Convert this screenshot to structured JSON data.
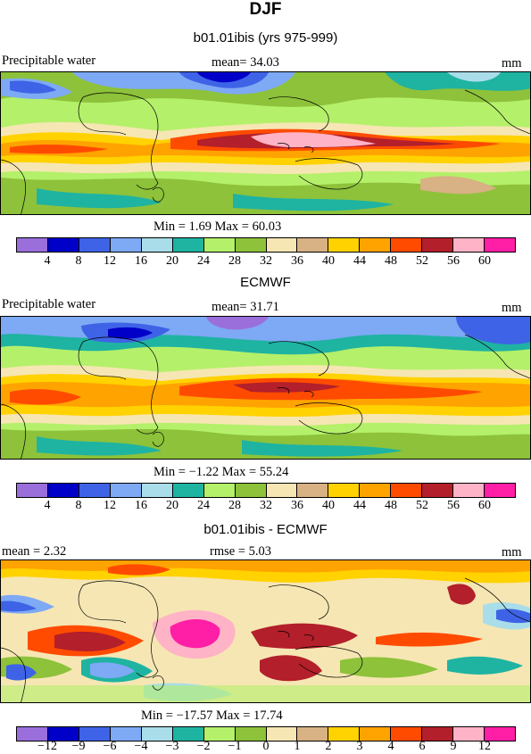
{
  "page_title": "DJF",
  "panels": [
    {
      "subtitle": "b01.01ibis (yrs 975-999)",
      "left_label": "Precipitable water",
      "center_label": "mean=   34.03",
      "units": "mm",
      "minmax": "Min =    1.69  Max =   60.03",
      "colorbar_ticks": [
        "4",
        "8",
        "12",
        "16",
        "20",
        "24",
        "28",
        "32",
        "36",
        "40",
        "44",
        "48",
        "52",
        "56",
        "60"
      ]
    },
    {
      "subtitle": "ECMWF",
      "left_label": "Precipitable water",
      "center_label": "mean=   31.71",
      "units": "mm",
      "minmax": "Min =   −1.22  Max =   55.24",
      "colorbar_ticks": [
        "4",
        "8",
        "12",
        "16",
        "20",
        "24",
        "28",
        "32",
        "36",
        "40",
        "44",
        "48",
        "52",
        "56",
        "60"
      ]
    },
    {
      "subtitle": "b01.01ibis - ECMWF",
      "left_label": "mean =     2.32",
      "center_label": "rmse =     5.03",
      "units": "mm",
      "minmax": "Min = −17.57  Max =   17.74",
      "colorbar_ticks": [
        "−12",
        "−9",
        "−6",
        "−4",
        "−3",
        "−2",
        "−1",
        "0",
        "1",
        "2",
        "3",
        "4",
        "6",
        "9",
        "12"
      ]
    }
  ],
  "colorbar_colors": [
    "#9a6fdc",
    "#0000c8",
    "#3e63e6",
    "#7ea9f4",
    "#a9dde9",
    "#1fb3a2",
    "#b4f06a",
    "#8dc23a",
    "#f6e6b3",
    "#d8b184",
    "#ffd200",
    "#ffa300",
    "#ff4b00",
    "#b31f2a",
    "#ffb3c6",
    "#ff1ea6"
  ]
}
